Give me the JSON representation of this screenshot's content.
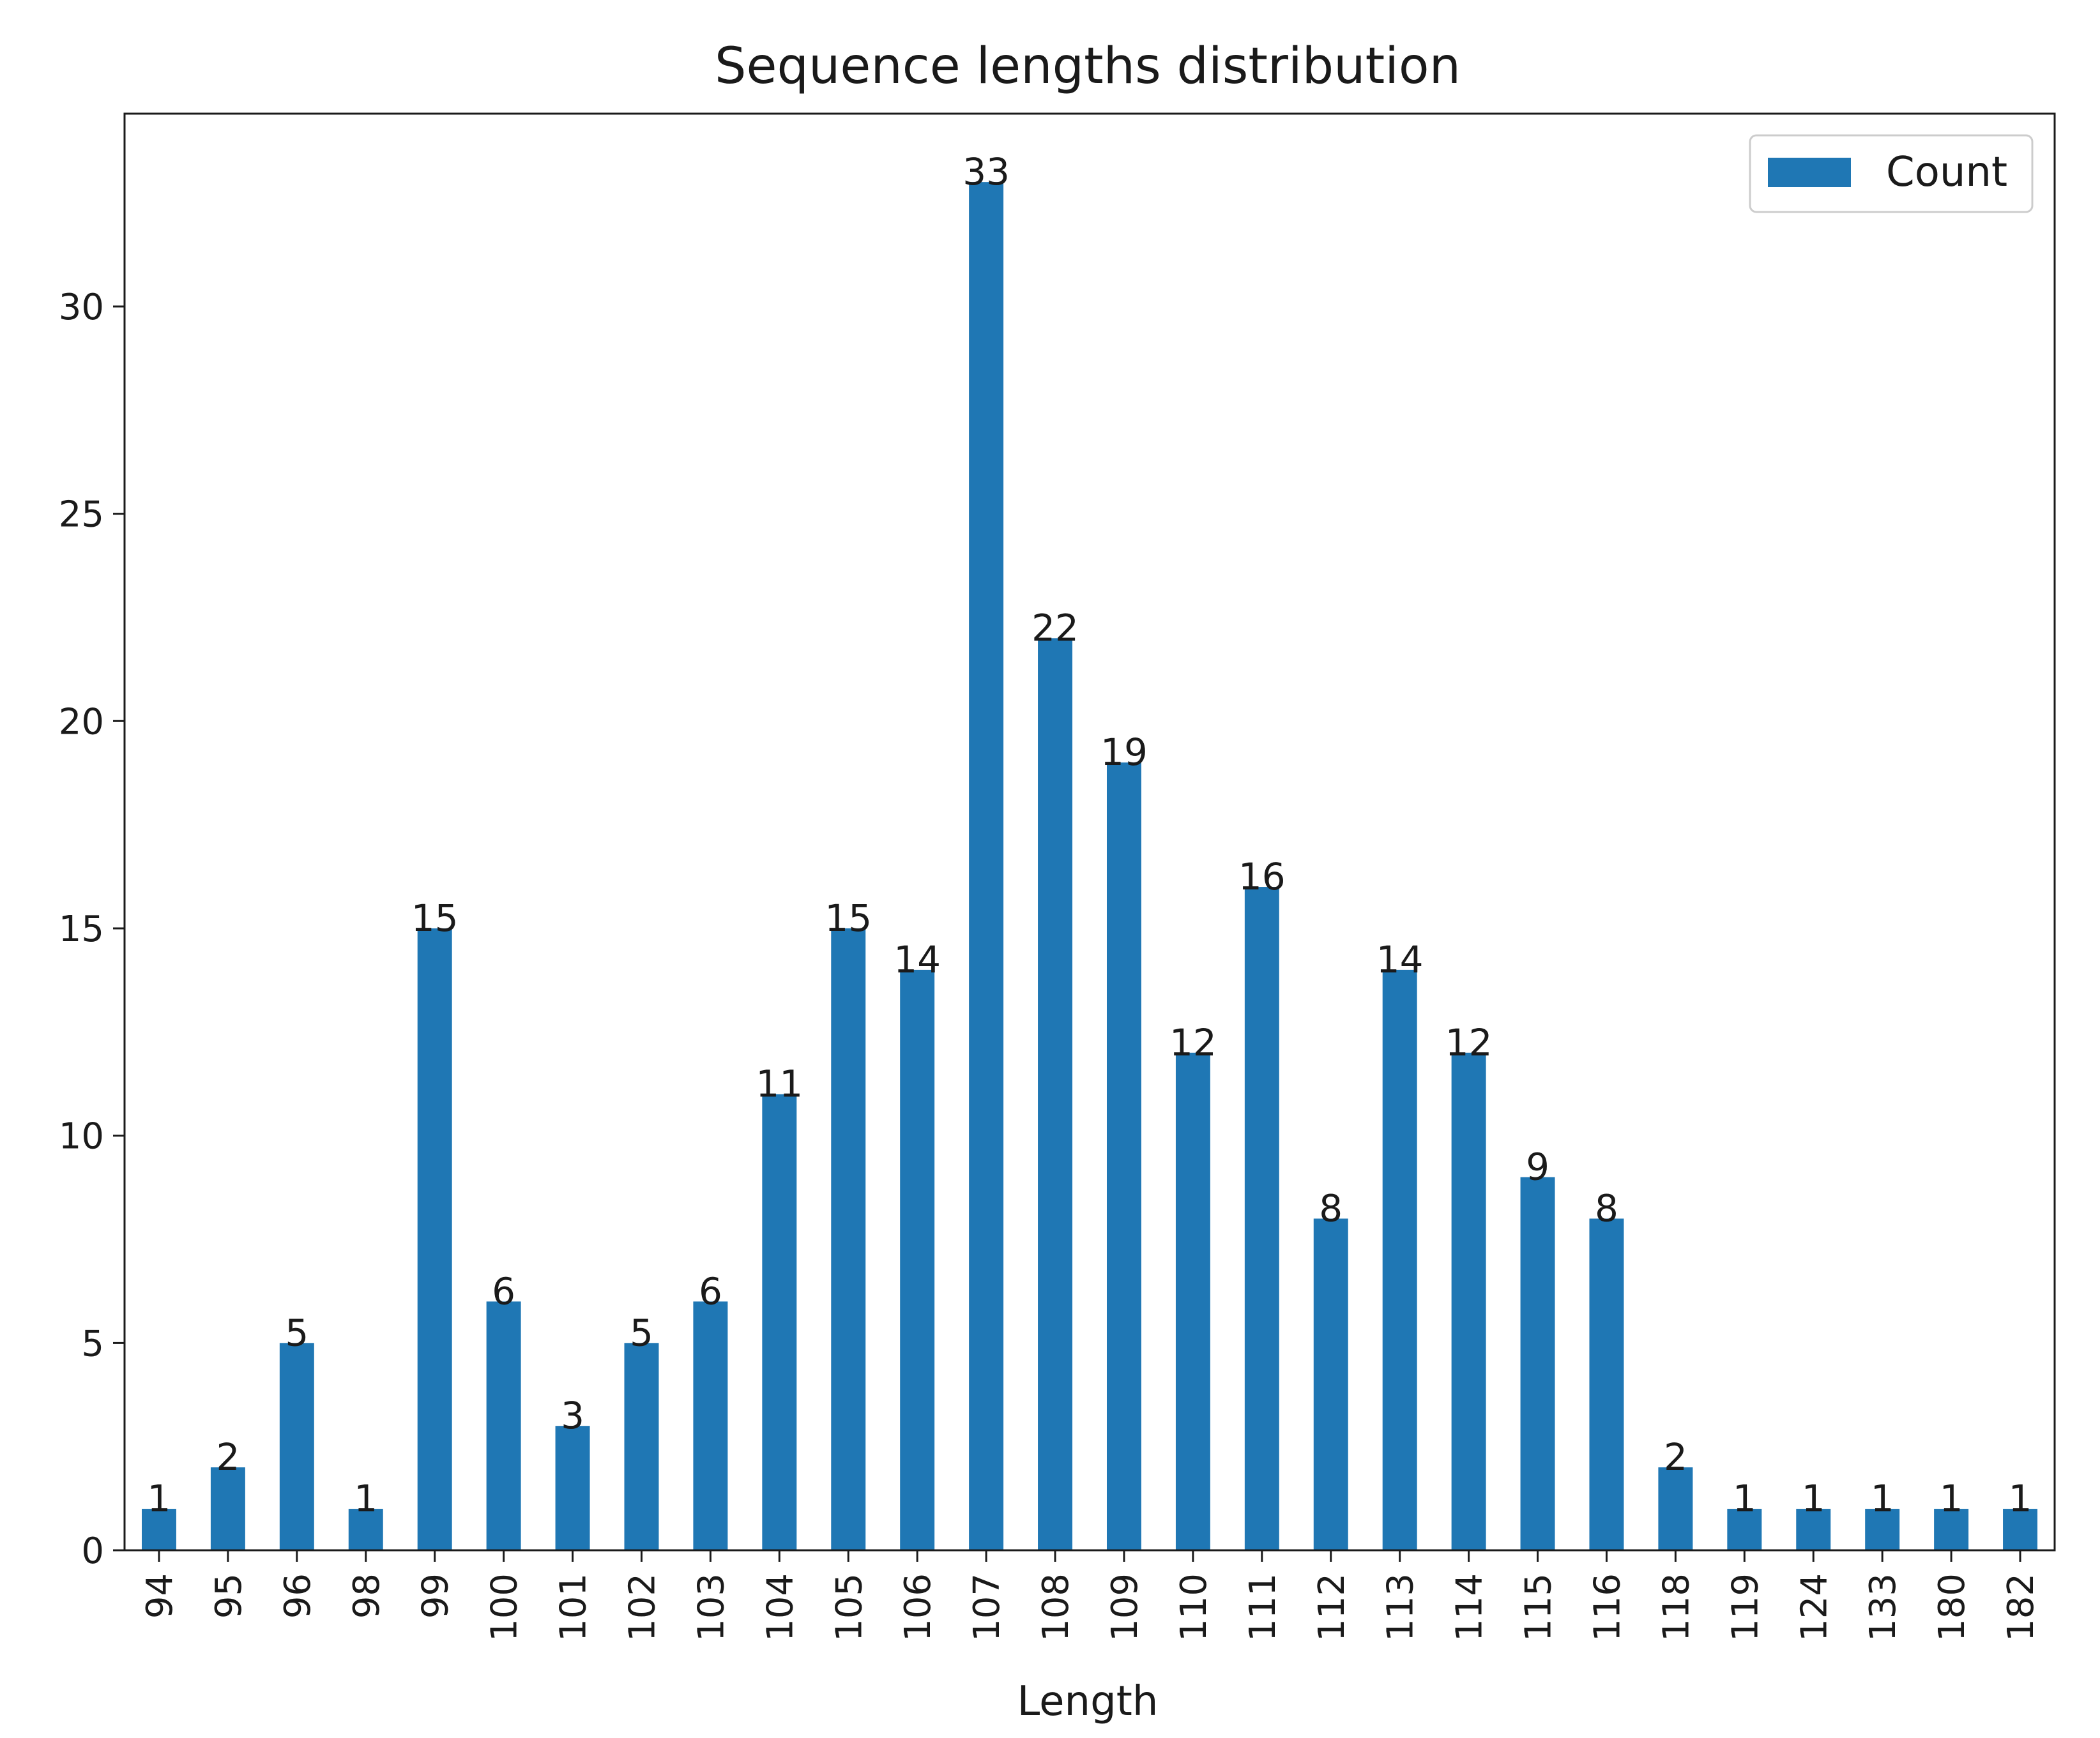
{
  "chart_data": {
    "type": "bar",
    "title": "Sequence lengths distribution",
    "xlabel": "Length",
    "ylabel": "",
    "ylim": [
      0,
      34.65
    ],
    "yticks": [
      0,
      5,
      10,
      15,
      20,
      25,
      30
    ],
    "categories": [
      "94",
      "95",
      "96",
      "98",
      "99",
      "100",
      "101",
      "102",
      "103",
      "104",
      "105",
      "106",
      "107",
      "108",
      "109",
      "110",
      "111",
      "112",
      "113",
      "114",
      "115",
      "116",
      "118",
      "119",
      "124",
      "133",
      "180",
      "182"
    ],
    "series": [
      {
        "name": "Count",
        "color": "#1f77b4",
        "values": [
          1,
          2,
          5,
          1,
          15,
          6,
          3,
          5,
          6,
          11,
          15,
          14,
          33,
          22,
          19,
          12,
          16,
          8,
          14,
          12,
          9,
          8,
          2,
          1,
          1,
          1,
          1,
          1
        ]
      }
    ],
    "legend": {
      "position": "top-right",
      "label": "Count"
    },
    "grid": false
  }
}
